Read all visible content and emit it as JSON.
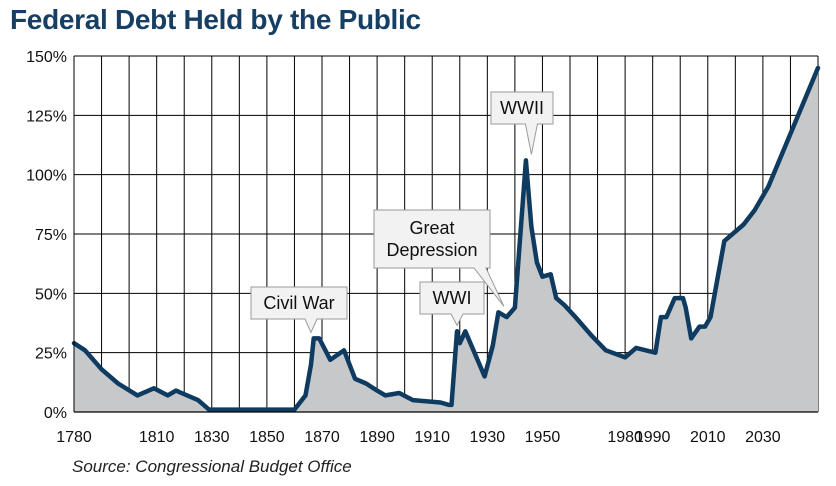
{
  "chart_data": {
    "type": "area",
    "title": "Federal Debt Held by the Public",
    "source": "Source: Congressional Budget Office",
    "xlabel": "",
    "ylabel": "",
    "xlim": [
      1780,
      2050
    ],
    "ylim": [
      0,
      150
    ],
    "grid": true,
    "x_ticks": [
      1780,
      1810,
      1830,
      1850,
      1870,
      1890,
      1910,
      1930,
      1950,
      1980,
      1990,
      2010,
      2030
    ],
    "x_tick_labels": [
      "1780",
      "1810",
      "1830",
      "1850",
      "1870",
      "1890",
      "1910",
      "1930",
      "1950",
      "1980",
      "1990",
      "2010",
      "2030"
    ],
    "y_ticks": [
      0,
      25,
      50,
      75,
      100,
      125,
      150
    ],
    "y_tick_labels": [
      "0%",
      "25%",
      "50%",
      "75%",
      "100%",
      "125%",
      "150%"
    ],
    "colors": {
      "line": "#0f3b60",
      "fill": "#c6c8ca",
      "grid": "#000000",
      "title": "#163f63",
      "callout_bg": "#f2f2f2",
      "callout_border": "#9a9a9a"
    },
    "series": [
      {
        "name": "",
        "x": [
          1780,
          1784,
          1790,
          1796,
          1803,
          1809,
          1814,
          1817,
          1819,
          1825,
          1829,
          1832,
          1836,
          1857,
          1860,
          1864,
          1866,
          1867,
          1869,
          1873,
          1878,
          1882,
          1886,
          1890,
          1893,
          1898,
          1903,
          1913,
          1916,
          1917,
          1919,
          1920,
          1922,
          1929,
          1932,
          1934,
          1937,
          1940,
          1944,
          1946,
          1948,
          1950,
          1953,
          1955,
          1958,
          1962,
          1968,
          1973,
          1980,
          1982,
          1984,
          1991,
          1993,
          1995,
          1998,
          2001,
          2002,
          2004,
          2007,
          2009,
          2011,
          2016,
          2023,
          2027,
          2032,
          2050
        ],
        "values": [
          29,
          26,
          18,
          12,
          7,
          10,
          7,
          9,
          8,
          5,
          1,
          1,
          1,
          1,
          1,
          7,
          20,
          31,
          31,
          22,
          26,
          14,
          12,
          9,
          7,
          8,
          5,
          4,
          3,
          3,
          34,
          29,
          34,
          15,
          28,
          42,
          40,
          44,
          106,
          78,
          63,
          57,
          58,
          48,
          45,
          40,
          32,
          26,
          23,
          25,
          27,
          25,
          40,
          40,
          48,
          48,
          44,
          31,
          36,
          36,
          40,
          72,
          79,
          85,
          95,
          145
        ]
      }
    ],
    "annotations": [
      {
        "text": "Civil War",
        "lines": [
          "Civil War"
        ],
        "x": 1866,
        "y": 31
      },
      {
        "text": "WWI",
        "lines": [
          "WWI"
        ],
        "x": 1919,
        "y": 34
      },
      {
        "text": "Great Depression",
        "lines": [
          "Great",
          "Depression"
        ],
        "x": 1936,
        "y": 42
      },
      {
        "text": "WWII",
        "lines": [
          "WWII"
        ],
        "x": 1946,
        "y": 106
      }
    ]
  }
}
